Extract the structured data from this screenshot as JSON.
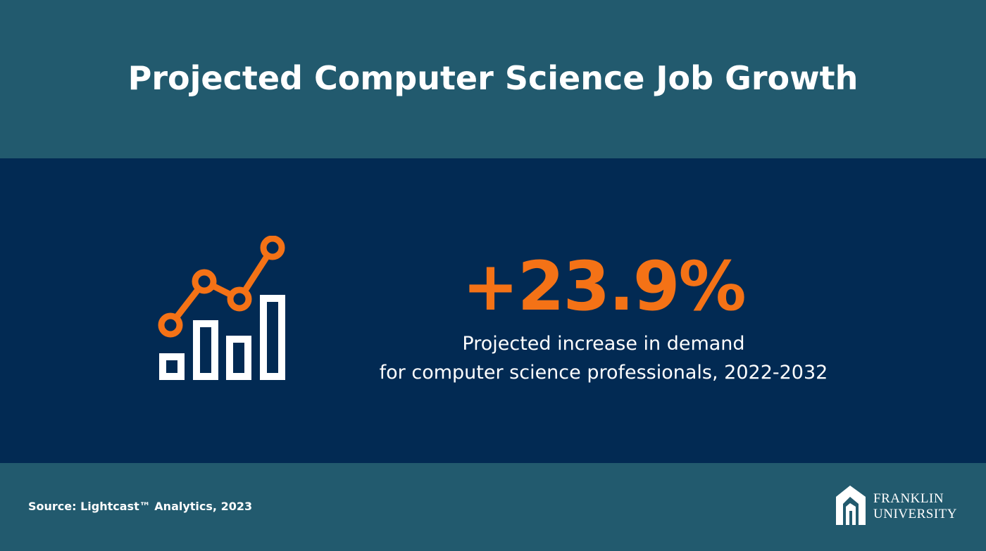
{
  "header": {
    "title": "Projected Computer Science Job Growth"
  },
  "stat": {
    "value": "+23.9%",
    "description": [
      "Projected increase in demand",
      "for computer science professionals, 2022-2032"
    ]
  },
  "footer": {
    "source": "Source: Lightcast™ Analytics, 2023",
    "logo": [
      "FRANKLIN",
      "UNIVERSITY"
    ]
  }
}
